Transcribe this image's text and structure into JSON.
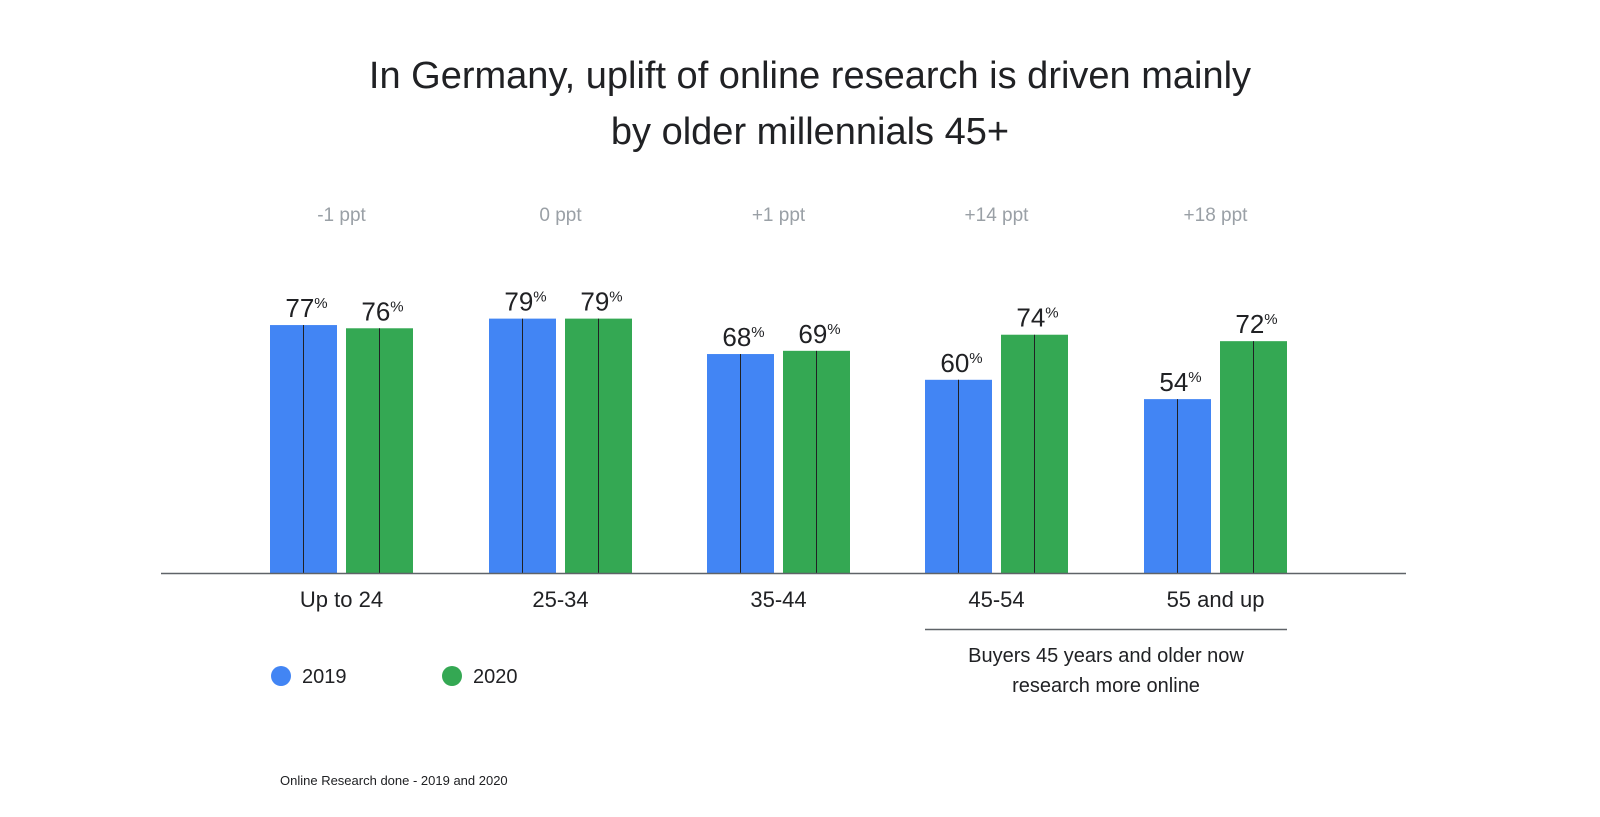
{
  "chart_data": {
    "type": "bar",
    "title": [
      "In Germany, uplift of online research is driven mainly",
      "by older millennials 45+"
    ],
    "categories": [
      "Up to 24",
      "25-34",
      "35-44",
      "45-54",
      "55 and up"
    ],
    "series": [
      {
        "name": "2019",
        "color": "#4285F4",
        "values": [
          77,
          79,
          68,
          60,
          54
        ]
      },
      {
        "name": "2020",
        "color": "#34A853",
        "values": [
          76,
          79,
          69,
          74,
          72
        ]
      }
    ],
    "value_suffix": "%",
    "changes": [
      "-1 ppt",
      "0 ppt",
      "+1 ppt",
      "+14 ppt",
      "+18 ppt"
    ],
    "ylim": [
      0,
      100
    ],
    "xlabel": "",
    "ylabel": "",
    "grid": false,
    "legend": "bottom-left",
    "annotation": {
      "lines": [
        "Buyers 45 years and older now",
        "research more online"
      ],
      "spans": [
        "45-54",
        "55 and up"
      ]
    },
    "footnote": "Online Research done - 2019 and 2020"
  },
  "colors": {
    "series_2019": "#4285F4",
    "series_2020": "#34A853",
    "change_label": "#9AA0A6",
    "text": "#202124"
  }
}
